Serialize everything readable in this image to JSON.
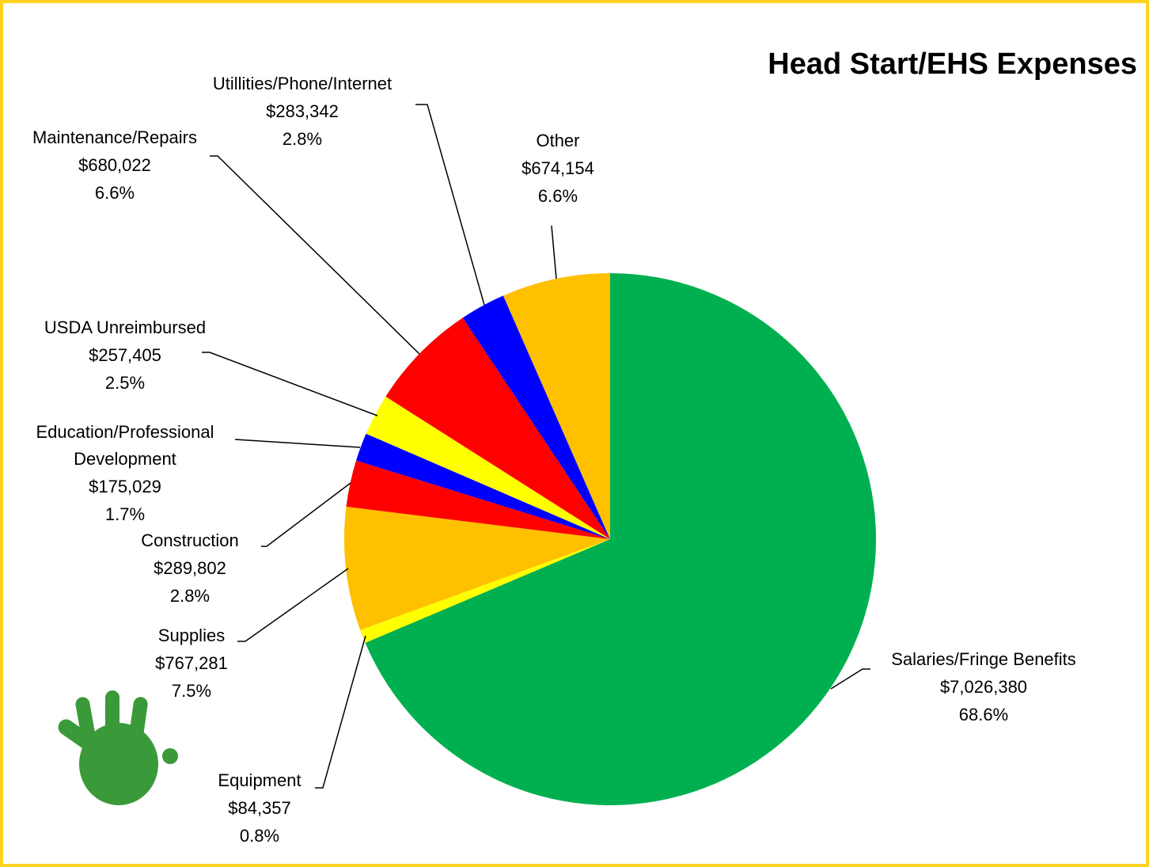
{
  "chart_data": {
    "type": "pie",
    "title": "Head Start/EHS Expenses",
    "categories": [
      "Salaries/Fringe Benefits",
      "Equipment",
      "Supplies",
      "Construction",
      "Education/Professional Development",
      "USDA Unreimbursed",
      "Maintenance/Repairs",
      "Utillities/Phone/Internet",
      "Other"
    ],
    "values": [
      7026380,
      84357,
      767281,
      289802,
      175029,
      257405,
      680022,
      283342,
      674154
    ],
    "value_labels": [
      "$7,026,380",
      "$84,357",
      "$767,281",
      "$289,802",
      "$175,029",
      "$257,405",
      "$680,022",
      "$283,342",
      "$674,154"
    ],
    "percent_labels": [
      "68.6%",
      "0.8%",
      "7.5%",
      "2.8%",
      "1.7%",
      "2.5%",
      "6.6%",
      "2.8%",
      "6.6%"
    ],
    "colors": [
      "#00b050",
      "#ffff00",
      "#ffc000",
      "#ff0000",
      "#0000ff",
      "#ffff00",
      "#ff0000",
      "#0000ff",
      "#ffc000"
    ]
  }
}
